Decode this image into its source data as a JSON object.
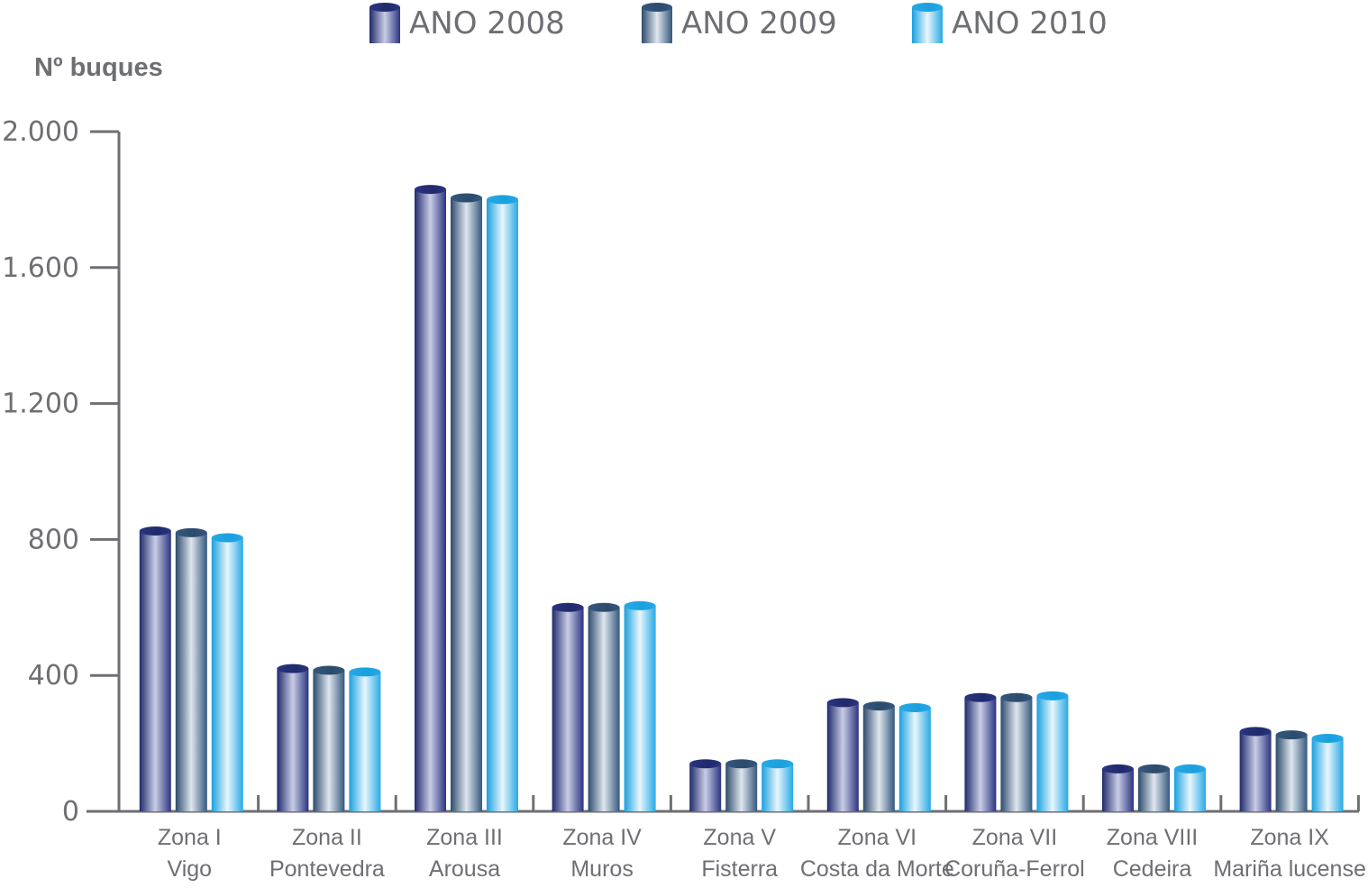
{
  "chart_data": {
    "type": "bar",
    "ylabel": "Nº buques",
    "ylim": [
      0,
      2000
    ],
    "yticks": [
      {
        "value": 0,
        "label": "0"
      },
      {
        "value": 400,
        "label": "400"
      },
      {
        "value": 800,
        "label": "800"
      },
      {
        "value": 1200,
        "label": "1.200"
      },
      {
        "value": 1600,
        "label": "1.600"
      },
      {
        "value": 2000,
        "label": "2.000"
      }
    ],
    "categories": [
      {
        "line1": "Zona I",
        "line2": "Vigo"
      },
      {
        "line1": "Zona II",
        "line2": "Pontevedra"
      },
      {
        "line1": "Zona III",
        "line2": "Arousa"
      },
      {
        "line1": "Zona IV",
        "line2": "Muros"
      },
      {
        "line1": "Zona V",
        "line2": "Fisterra"
      },
      {
        "line1": "Zona VI",
        "line2": "Costa da Morte"
      },
      {
        "line1": "Zona VII",
        "line2": "Coruña-Ferrol"
      },
      {
        "line1": "Zona VIII",
        "line2": "Cedeira"
      },
      {
        "line1": "Zona IX",
        "line2": "Mariña lucense"
      }
    ],
    "series": [
      {
        "name": "ANO 2008",
        "colors": [
          "#1f2a6b",
          "#c9cde6",
          "#2b3480"
        ],
        "values": [
          825,
          420,
          1830,
          600,
          140,
          320,
          335,
          125,
          235
        ]
      },
      {
        "name": "ANO 2009",
        "colors": [
          "#2c4b6c",
          "#dfe6ee",
          "#34587d"
        ],
        "values": [
          820,
          415,
          1805,
          600,
          140,
          310,
          335,
          125,
          225
        ]
      },
      {
        "name": "ANO 2010",
        "colors": [
          "#1aa0df",
          "#e8f6fd",
          "#27a9e4"
        ],
        "values": [
          805,
          410,
          1800,
          605,
          140,
          305,
          340,
          125,
          215
        ]
      }
    ],
    "legend_position": "top",
    "grid": false
  }
}
